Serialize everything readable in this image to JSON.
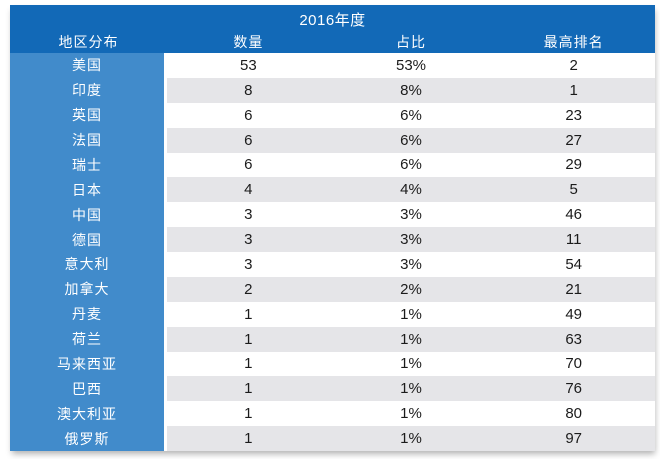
{
  "chart_data": {
    "type": "table",
    "title": "2016年度",
    "columns": [
      "地区分布",
      "数量",
      "占比",
      "最高排名"
    ],
    "rows": [
      [
        "美国",
        "53",
        "53%",
        "2"
      ],
      [
        "印度",
        "8",
        "8%",
        "1"
      ],
      [
        "英国",
        "6",
        "6%",
        "23"
      ],
      [
        "法国",
        "6",
        "6%",
        "27"
      ],
      [
        "瑞士",
        "6",
        "6%",
        "29"
      ],
      [
        "日本",
        "4",
        "4%",
        "5"
      ],
      [
        "中国",
        "3",
        "3%",
        "46"
      ],
      [
        "德国",
        "3",
        "3%",
        "11"
      ],
      [
        "意大利",
        "3",
        "3%",
        "54"
      ],
      [
        "加拿大",
        "2",
        "2%",
        "21"
      ],
      [
        "丹麦",
        "1",
        "1%",
        "49"
      ],
      [
        "荷兰",
        "1",
        "1%",
        "63"
      ],
      [
        "马来西亚",
        "1",
        "1%",
        "70"
      ],
      [
        "巴西",
        "1",
        "1%",
        "76"
      ],
      [
        "澳大利亚",
        "1",
        "1%",
        "80"
      ],
      [
        "俄罗斯",
        "1",
        "1%",
        "97"
      ]
    ],
    "layout": {
      "row_striping": "white / light-gray alternating, first row white",
      "first_column_style": "solid light blue with white text",
      "header_style": "solid dark blue band with white text, title row above column headers"
    }
  },
  "colors": {
    "header_blue": "#1269b7",
    "region_blue": "#418bcb",
    "row_gray": "#e5e5e8",
    "row_white": "#ffffff",
    "text_dark": "#1b1b1b",
    "text_light": "#ffffff"
  }
}
